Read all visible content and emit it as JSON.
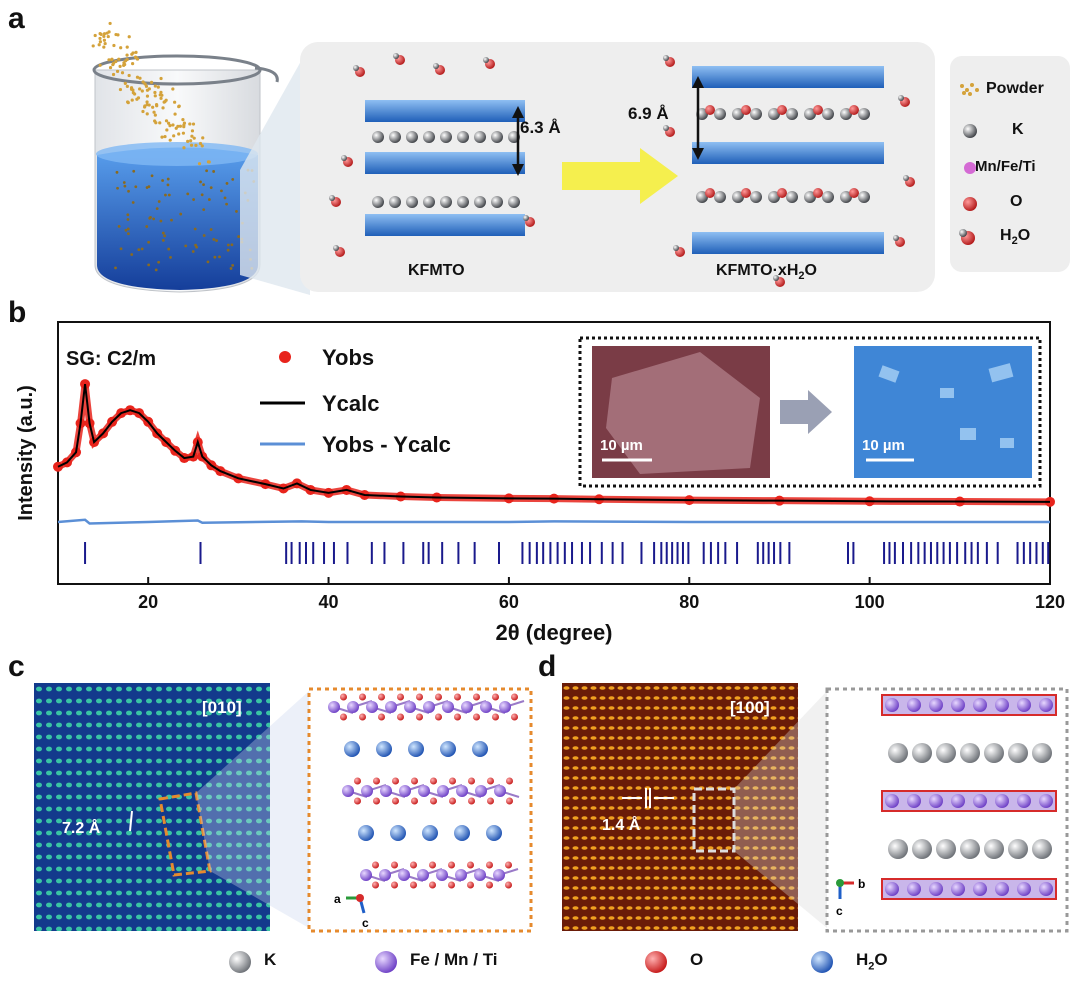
{
  "panel_a": {
    "letter": "a",
    "left_structure_label": "KFMTO",
    "right_structure_label": "KFMTO·xH",
    "right_structure_sub": "2",
    "right_structure_tail": "O",
    "spacing_left": "6.3 Å",
    "spacing_right": "6.9 Å",
    "legend": {
      "powder": "Powder",
      "k": "K",
      "metal": "Mn/Fe/Ti",
      "o": "O",
      "h2o_main": "H",
      "h2o_sub": "2",
      "h2o_tail": "O"
    },
    "colors": {
      "water": "#2a64c8",
      "powder": "#d4a23a",
      "octahedra": "#3f7ed8",
      "k": "#9aa0a6",
      "o": "#d62b2b"
    }
  },
  "panel_b": {
    "letter": "b",
    "space_group": "SG: C2/m",
    "inset_left_scale": "10 µm",
    "inset_right_scale": "10 µm",
    "colors": {
      "yobs": "#e8241c",
      "ycalc": "#000000",
      "diff": "#5b8fd6",
      "ticks": "#1a1a8c"
    }
  },
  "chart_data": {
    "type": "line",
    "xlabel": "2θ (degree)",
    "ylabel": "Intensity (a.u.)",
    "xlim": [
      10,
      120
    ],
    "x_ticks": [
      20,
      40,
      60,
      80,
      100,
      120
    ],
    "series": [
      {
        "name": "Yobs",
        "style": "scatter-markers",
        "x": [
          10,
          11,
          12,
          12.5,
          13,
          13.5,
          14,
          15,
          16,
          17,
          18,
          19,
          20,
          21,
          22,
          23,
          24,
          25,
          25.5,
          26,
          27,
          28,
          30,
          33,
          35,
          36.5,
          38,
          40,
          42,
          44,
          48,
          52,
          60,
          65,
          70,
          80,
          90,
          100,
          110,
          120
        ],
        "y": [
          0.25,
          0.28,
          0.35,
          0.55,
          0.82,
          0.55,
          0.42,
          0.48,
          0.56,
          0.62,
          0.64,
          0.62,
          0.56,
          0.48,
          0.42,
          0.36,
          0.31,
          0.32,
          0.42,
          0.32,
          0.26,
          0.22,
          0.17,
          0.13,
          0.1,
          0.135,
          0.09,
          0.07,
          0.09,
          0.055,
          0.045,
          0.038,
          0.032,
          0.03,
          0.026,
          0.02,
          0.016,
          0.012,
          0.01,
          0.008
        ]
      },
      {
        "name": "Ycalc",
        "style": "line",
        "x": [
          10,
          11,
          12,
          12.5,
          13,
          13.5,
          14,
          15,
          16,
          17,
          18,
          19,
          20,
          21,
          22,
          23,
          24,
          25,
          25.5,
          26,
          27,
          28,
          30,
          33,
          35,
          36.5,
          38,
          40,
          42,
          44,
          48,
          52,
          60,
          65,
          70,
          80,
          90,
          100,
          110,
          120
        ],
        "y": [
          0.25,
          0.28,
          0.35,
          0.55,
          0.82,
          0.55,
          0.42,
          0.48,
          0.56,
          0.62,
          0.64,
          0.62,
          0.56,
          0.48,
          0.42,
          0.36,
          0.31,
          0.32,
          0.42,
          0.32,
          0.26,
          0.22,
          0.17,
          0.13,
          0.1,
          0.135,
          0.09,
          0.07,
          0.09,
          0.055,
          0.045,
          0.038,
          0.032,
          0.03,
          0.026,
          0.02,
          0.016,
          0.012,
          0.01,
          0.008
        ]
      },
      {
        "name": "Yobs - Ycalc",
        "style": "line",
        "x": [
          10,
          13,
          13.5,
          20,
          25.5,
          26,
          37,
          40,
          60,
          65,
          80,
          100,
          120
        ],
        "y": [
          0,
          0.015,
          -0.01,
          0,
          0.01,
          -0.005,
          0.004,
          0,
          0,
          0.004,
          0,
          0,
          0
        ]
      }
    ],
    "bragg_positions": [
      13,
      25.8,
      35.3,
      35.9,
      36.8,
      37.5,
      38.3,
      39.5,
      40.6,
      42.1,
      44.8,
      46.2,
      48.3,
      50.5,
      51.1,
      52.6,
      54.4,
      56.2,
      58.9,
      61.5,
      62.3,
      63.1,
      63.8,
      64.6,
      65.4,
      66.2,
      67.0,
      68.1,
      69.0,
      70.3,
      71.5,
      72.6,
      74.7,
      76.1,
      76.9,
      77.5,
      78.1,
      78.7,
      79.3,
      79.9,
      81.6,
      82.4,
      83.2,
      84.0,
      85.3,
      87.6,
      88.2,
      88.8,
      89.4,
      90.1,
      91.1,
      97.6,
      98.2,
      101.6,
      102.2,
      102.8,
      103.7,
      104.6,
      105.4,
      106.1,
      106.8,
      107.5,
      108.2,
      108.9,
      109.7,
      110.6,
      111.3,
      112.0,
      113.0,
      114.2,
      116.4,
      117.1,
      117.8,
      118.5,
      119.2,
      119.8
    ],
    "grid": false,
    "legend": "top-left"
  },
  "panel_c": {
    "letter": "c",
    "zone_axis": "[010]",
    "spacing": "7.2 Å",
    "axis_a": "a",
    "axis_c": "c"
  },
  "panel_d": {
    "letter": "d",
    "zone_axis": "[100]",
    "spacing": "1.4 Å",
    "axis_b": "b",
    "axis_c": "c"
  },
  "bottom_legend": {
    "k": "K",
    "metal": "Fe / Mn / Ti",
    "o": "O",
    "h2o_main": "H",
    "h2o_sub": "2",
    "h2o_tail": "O"
  }
}
